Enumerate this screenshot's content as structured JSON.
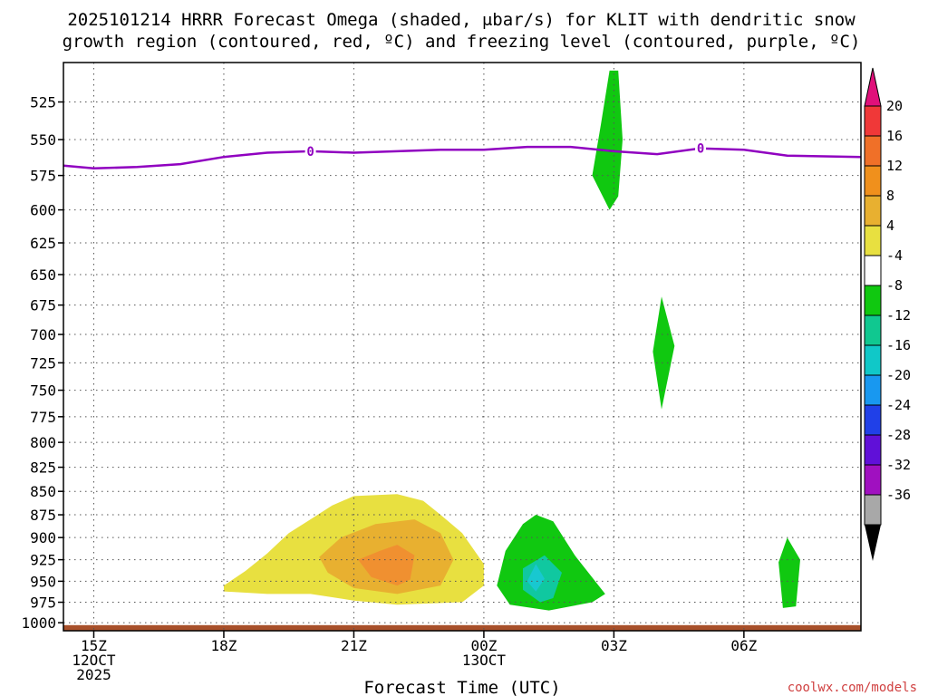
{
  "chart_data": {
    "type": "heatmap",
    "title_line1": "2025101214 HRRR Forecast Omega (shaded, μbar/s) for KLIT with dendritic snow",
    "title_line2": "growth region (contoured, red, ºC) and freezing level (contoured, purple, ºC)",
    "xlabel": "Forecast Time (UTC)",
    "credit": "coolwx.com/models",
    "x_range_hours": [
      14.3,
      32.7
    ],
    "x_ticks": [
      {
        "hour": 15,
        "lines": [
          "15Z",
          "12OCT",
          "2025"
        ]
      },
      {
        "hour": 18,
        "lines": [
          "18Z"
        ]
      },
      {
        "hour": 21,
        "lines": [
          "21Z"
        ]
      },
      {
        "hour": 24,
        "lines": [
          "00Z",
          "13OCT"
        ]
      },
      {
        "hour": 27,
        "lines": [
          "03Z"
        ]
      },
      {
        "hour": 30,
        "lines": [
          "06Z"
        ]
      }
    ],
    "y_range_hpa": [
      1010,
      500
    ],
    "y_ticks": [
      525,
      550,
      575,
      600,
      625,
      650,
      675,
      700,
      725,
      750,
      775,
      800,
      825,
      850,
      875,
      900,
      925,
      950,
      975,
      1000
    ],
    "colorbar": {
      "labels": [
        "20",
        "16",
        "12",
        "8",
        "4",
        "-4",
        "-8",
        "-12",
        "-16",
        "-20",
        "-24",
        "-28",
        "-32",
        "-36"
      ],
      "top_arrow_color": "#e0107a",
      "bottom_arrow_color": "#000000",
      "colors": [
        "#f03838",
        "#f07028",
        "#f0901c",
        "#e8b030",
        "#e8e040",
        "#ffffff",
        "#10c810",
        "#10c890",
        "#10c8c8",
        "#1898f0",
        "#2040e8",
        "#6010d8",
        "#a010c0",
        "#a8a8a8"
      ]
    },
    "freezing_level": {
      "label": "0",
      "color": "#9000c0",
      "points": [
        [
          14.3,
          568
        ],
        [
          15,
          570
        ],
        [
          16,
          569
        ],
        [
          17,
          567
        ],
        [
          18,
          562
        ],
        [
          19,
          559
        ],
        [
          20,
          558
        ],
        [
          21,
          559
        ],
        [
          22,
          558
        ],
        [
          23,
          557
        ],
        [
          24,
          557
        ],
        [
          25,
          555
        ],
        [
          26,
          555
        ],
        [
          27,
          558
        ],
        [
          28,
          560
        ],
        [
          29,
          556
        ],
        [
          30,
          557
        ],
        [
          31,
          561
        ],
        [
          32.7,
          562
        ]
      ],
      "label_hours": [
        20,
        29
      ]
    },
    "omega_regions": [
      {
        "value_class": "4 to 8",
        "color": "#e8e040",
        "points": [
          [
            18,
            955
          ],
          [
            18.5,
            938
          ],
          [
            19,
            918
          ],
          [
            19.5,
            895
          ],
          [
            20,
            880
          ],
          [
            20.5,
            865
          ],
          [
            21,
            855
          ],
          [
            22,
            853
          ],
          [
            22.6,
            860
          ],
          [
            23,
            875
          ],
          [
            23.5,
            895
          ],
          [
            24.0,
            930
          ],
          [
            24.0,
            955
          ],
          [
            23.5,
            975
          ],
          [
            22,
            978
          ],
          [
            21,
            973
          ],
          [
            20,
            965
          ],
          [
            19,
            965
          ],
          [
            18,
            962
          ]
        ]
      },
      {
        "value_class": "8 to 12",
        "color": "#e8b030",
        "points": [
          [
            20.2,
            922
          ],
          [
            20.7,
            900
          ],
          [
            21.5,
            885
          ],
          [
            22.4,
            880
          ],
          [
            23,
            895
          ],
          [
            23.3,
            925
          ],
          [
            23,
            955
          ],
          [
            22,
            965
          ],
          [
            21,
            958
          ],
          [
            20.4,
            940
          ]
        ]
      },
      {
        "value_class": "12 to 16",
        "color": "#f09030",
        "points": [
          [
            21.1,
            925
          ],
          [
            21.6,
            915
          ],
          [
            22.0,
            908
          ],
          [
            22.4,
            920
          ],
          [
            22.3,
            948
          ],
          [
            22.0,
            955
          ],
          [
            21.4,
            945
          ]
        ]
      },
      {
        "value_class": "-4 to -8",
        "color": "#10c810",
        "points": [
          [
            25.2,
            875
          ],
          [
            25.6,
            882
          ],
          [
            26.1,
            920
          ],
          [
            26.8,
            965
          ],
          [
            26.5,
            975
          ],
          [
            25.5,
            985
          ],
          [
            24.6,
            978
          ],
          [
            24.3,
            955
          ],
          [
            24.5,
            915
          ],
          [
            24.9,
            885
          ]
        ]
      },
      {
        "value_class": "-8 to -12",
        "color": "#10c8a0",
        "points": [
          [
            25.4,
            920
          ],
          [
            25.8,
            940
          ],
          [
            25.6,
            970
          ],
          [
            25.3,
            975
          ],
          [
            24.9,
            960
          ],
          [
            24.9,
            935
          ]
        ]
      },
      {
        "value_class": "-12 to -16",
        "color": "#18c8d0",
        "points": [
          [
            25.2,
            930
          ],
          [
            25.4,
            947
          ],
          [
            25.2,
            962
          ],
          [
            25.0,
            950
          ]
        ]
      },
      {
        "value_class": "-4 to -8",
        "color": "#10c810",
        "points": [
          [
            26.9,
            505
          ],
          [
            27.1,
            505
          ],
          [
            27.2,
            550
          ],
          [
            27.1,
            590
          ],
          [
            26.9,
            600
          ],
          [
            26.5,
            575
          ],
          [
            26.7,
            540
          ]
        ]
      },
      {
        "value_class": "-4 to -8",
        "color": "#10c810",
        "points": [
          [
            28.1,
            668
          ],
          [
            28.4,
            710
          ],
          [
            28.1,
            768
          ],
          [
            27.9,
            715
          ]
        ]
      },
      {
        "value_class": "-4 to -8",
        "color": "#10c810",
        "points": [
          [
            31.0,
            900
          ],
          [
            31.3,
            925
          ],
          [
            31.2,
            980
          ],
          [
            30.9,
            982
          ],
          [
            30.8,
            928
          ]
        ]
      }
    ],
    "surface": {
      "color": "#a8502a",
      "top_hpa": 1003
    }
  }
}
